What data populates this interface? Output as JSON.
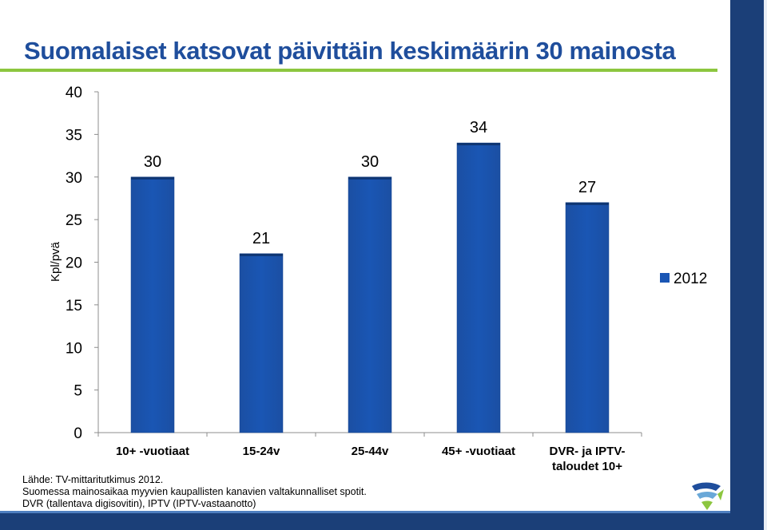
{
  "title": "Suomalaiset katsovat päivittäin keskimäärin 30 mainosta",
  "source": [
    "Lähde: TV-mittaritutkimus 2012.",
    "Suomessa mainosaikaa myyvien kaupallisten kanavien valtakunnalliset spotit.",
    "DVR (tallentava digisovitin), IPTV (IPTV-vastaanotto)"
  ],
  "colors": {
    "title": "#1f4e9c",
    "bar": "#1a56b4",
    "accent_green": "#8cc63f",
    "dark_blue": "#1b3f78"
  },
  "chart_data": {
    "type": "bar",
    "title": "",
    "xlabel": "",
    "ylabel": "Kpl/pvä",
    "ylim": [
      0,
      40
    ],
    "yticks": [
      0,
      5,
      10,
      15,
      20,
      25,
      30,
      35,
      40
    ],
    "categories": [
      [
        "10+ -vuotiaat"
      ],
      [
        "15-24v"
      ],
      [
        "25-44v"
      ],
      [
        "45+ -vuotiaat"
      ],
      [
        "DVR- ja IPTV-",
        "taloudet 10+"
      ]
    ],
    "series": [
      {
        "name": "2012",
        "values": [
          30,
          21,
          30,
          34,
          27
        ]
      }
    ],
    "data_labels": true,
    "grid": false,
    "legend": "right"
  }
}
